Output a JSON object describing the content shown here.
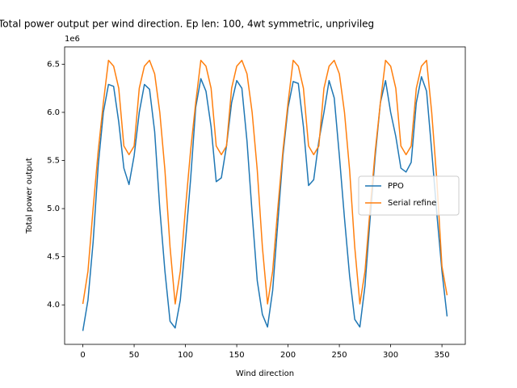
{
  "chart_data": {
    "type": "line",
    "title": "Total power output per wind direction. Ep len: 100, 4wt symmetric, unprivileg",
    "xlabel": "Wind direction",
    "ylabel": "Total power output",
    "y_offset_label": "1e6",
    "x": [
      0,
      5,
      10,
      15,
      20,
      25,
      30,
      35,
      40,
      45,
      50,
      55,
      60,
      65,
      70,
      75,
      80,
      85,
      90,
      95,
      100,
      105,
      110,
      115,
      120,
      125,
      130,
      135,
      140,
      145,
      150,
      155,
      160,
      165,
      170,
      175,
      180,
      185,
      190,
      195,
      200,
      205,
      210,
      215,
      220,
      225,
      230,
      235,
      240,
      245,
      250,
      255,
      260,
      265,
      270,
      275,
      280,
      285,
      290,
      295,
      300,
      305,
      310,
      315,
      320,
      325,
      330,
      335,
      340,
      345,
      350,
      355
    ],
    "series": [
      {
        "name": "PPO",
        "color": "#1f77b4",
        "values": [
          3.73,
          4.05,
          4.65,
          5.45,
          6.0,
          6.29,
          6.27,
          5.9,
          5.42,
          5.25,
          5.55,
          6.0,
          6.29,
          6.24,
          5.8,
          5.0,
          4.35,
          3.83,
          3.76,
          4.05,
          4.65,
          5.3,
          6.05,
          6.35,
          6.22,
          5.85,
          5.28,
          5.32,
          5.65,
          6.1,
          6.33,
          6.25,
          5.7,
          4.95,
          4.25,
          3.9,
          3.77,
          4.15,
          4.85,
          5.55,
          6.05,
          6.32,
          6.3,
          5.85,
          5.24,
          5.3,
          5.7,
          6.0,
          6.33,
          6.15,
          5.55,
          4.9,
          4.3,
          3.85,
          3.77,
          4.2,
          4.9,
          5.55,
          6.1,
          6.33,
          6.0,
          5.75,
          5.42,
          5.38,
          5.48,
          6.1,
          6.37,
          6.22,
          5.6,
          4.95,
          4.35,
          3.88
        ]
      },
      {
        "name": "Serial refine",
        "color": "#ff7f0e",
        "values": [
          4.01,
          4.35,
          5.0,
          5.6,
          6.1,
          6.54,
          6.48,
          6.25,
          5.65,
          5.56,
          5.65,
          6.25,
          6.48,
          6.54,
          6.4,
          6.0,
          5.4,
          4.6,
          4.01,
          4.35,
          5.0,
          5.6,
          6.1,
          6.54,
          6.48,
          6.25,
          5.65,
          5.56,
          5.65,
          6.25,
          6.48,
          6.54,
          6.4,
          6.0,
          5.4,
          4.6,
          4.01,
          4.35,
          5.0,
          5.6,
          6.1,
          6.54,
          6.48,
          6.25,
          5.65,
          5.56,
          5.65,
          6.25,
          6.48,
          6.54,
          6.4,
          6.0,
          5.4,
          4.6,
          4.01,
          4.35,
          5.0,
          5.6,
          6.1,
          6.54,
          6.48,
          6.25,
          5.65,
          5.56,
          5.65,
          6.25,
          6.48,
          6.54,
          6.0,
          5.3,
          4.4,
          4.1
        ]
      }
    ],
    "xlim": [
      -17.75,
      372.75
    ],
    "xticks": [
      0,
      50,
      100,
      150,
      200,
      250,
      300,
      350
    ],
    "ylim": [
      3.59,
      6.68
    ],
    "yticks": [
      4.0,
      4.5,
      5.0,
      5.5,
      6.0,
      6.5
    ],
    "legend": "center right",
    "grid": false
  }
}
